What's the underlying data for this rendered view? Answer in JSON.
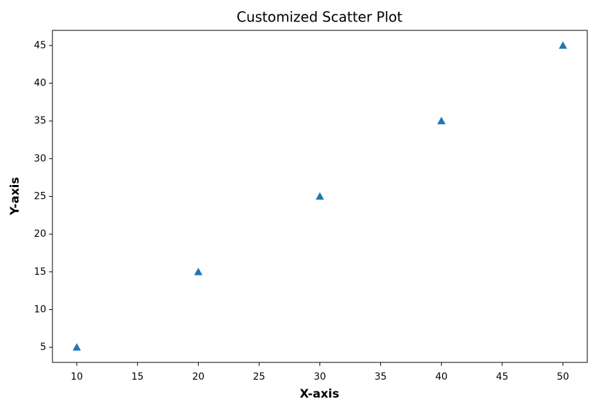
{
  "chart_data": {
    "type": "scatter",
    "title": "Customized Scatter Plot",
    "x_label": "X-axis",
    "y_label": "Y-axis",
    "series": [
      {
        "color": "#1f77b4",
        "marker": "triangle",
        "x": [
          10,
          20,
          30,
          40,
          50
        ],
        "values": [
          5,
          15,
          25,
          35,
          45
        ]
      }
    ],
    "xlim": [
      8,
      52
    ],
    "xticks": [
      10,
      15,
      20,
      25,
      30,
      35,
      40,
      45,
      50
    ],
    "ylim": [
      3,
      47
    ],
    "yticks": [
      5,
      10,
      15,
      20,
      25,
      30,
      35,
      40,
      45
    ],
    "grid": false
  }
}
